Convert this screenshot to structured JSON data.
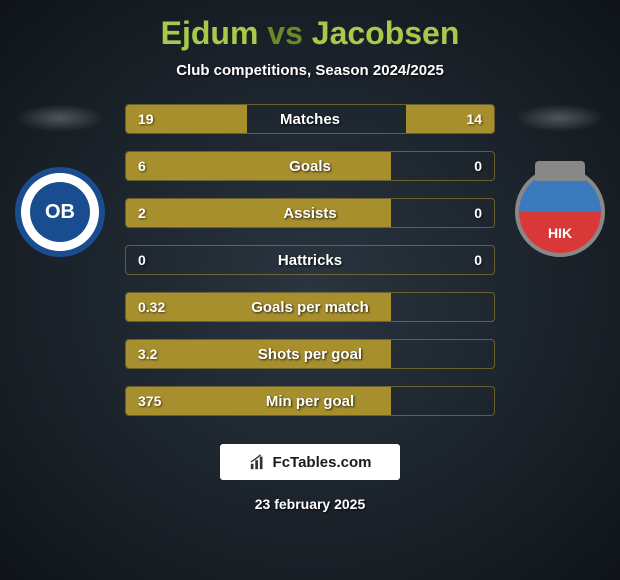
{
  "title": {
    "player1": "Ejdum",
    "vs": "vs",
    "player2": "Jacobsen"
  },
  "subtitle": "Club competitions, Season 2024/2025",
  "stats": [
    {
      "label": "Matches",
      "left_val": "19",
      "right_val": "14",
      "left_pct": 33,
      "right_pct": 24
    },
    {
      "label": "Goals",
      "left_val": "6",
      "right_val": "0",
      "left_pct": 72,
      "right_pct": 0
    },
    {
      "label": "Assists",
      "left_val": "2",
      "right_val": "0",
      "left_pct": 72,
      "right_pct": 0
    },
    {
      "label": "Hattricks",
      "left_val": "0",
      "right_val": "0",
      "left_pct": 0,
      "right_pct": 0
    },
    {
      "label": "Goals per match",
      "left_val": "0.32",
      "right_val": "",
      "left_pct": 72,
      "right_pct": 0
    },
    {
      "label": "Shots per goal",
      "left_val": "3.2",
      "right_val": "",
      "left_pct": 72,
      "right_pct": 0
    },
    {
      "label": "Min per goal",
      "left_val": "375",
      "right_val": "",
      "left_pct": 72,
      "right_pct": 0
    }
  ],
  "club_left": {
    "short": "OB"
  },
  "club_right": {
    "short": "HIK"
  },
  "branding": "FcTables.com",
  "date": "23 february 2025",
  "colors": {
    "bar_fill": "#a88f2d",
    "title_accent": "#a8c94a",
    "title_vs": "#6a8a2a"
  }
}
